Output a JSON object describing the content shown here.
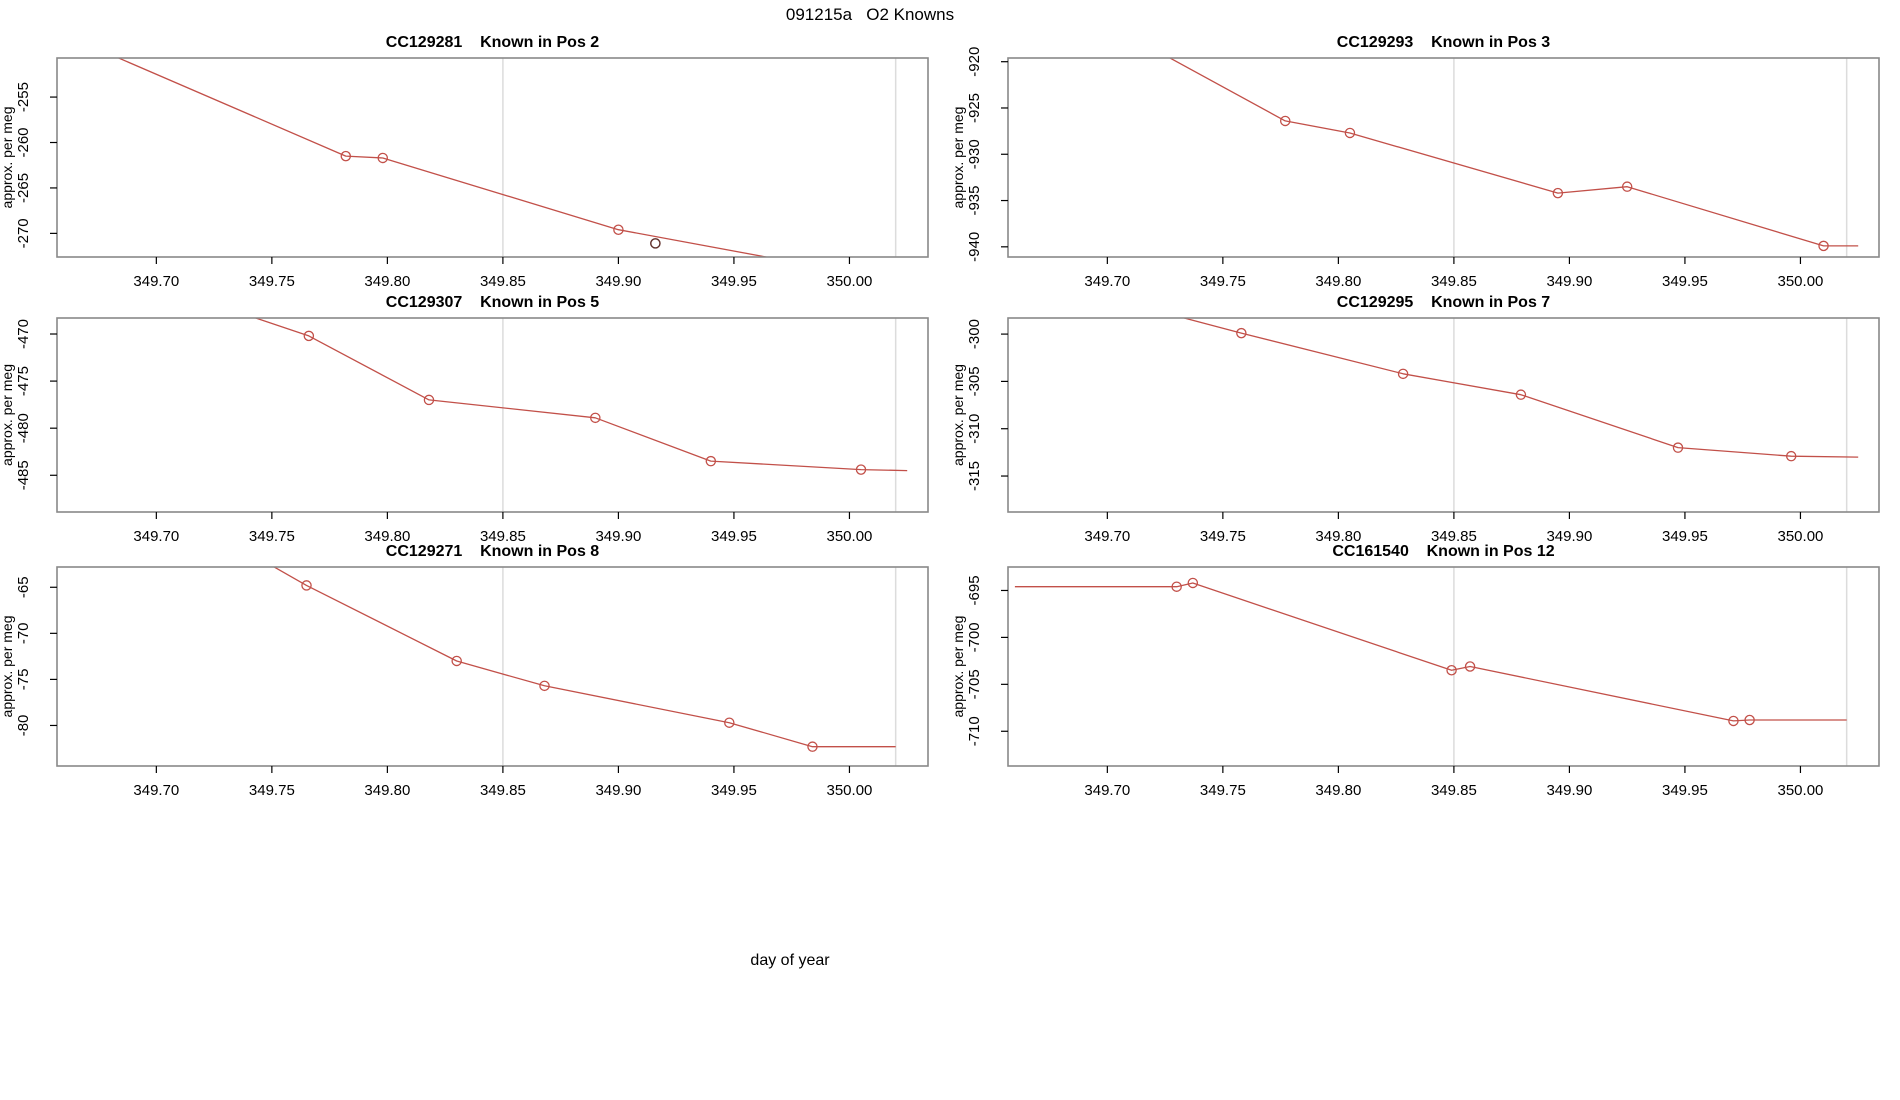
{
  "figure": {
    "title": "091215a   O2 Knowns",
    "xlabel": "day of year",
    "ylabel": "approx. per meg",
    "line_color": "#c25049",
    "marker_color": "#c25049",
    "detached_point_color": "#5f2f2a",
    "grid_color": "#dcdcdc",
    "frame_color": "#898989",
    "text_color": "#000000",
    "background": "#ffffff"
  },
  "axes": {
    "xlim": [
      349.657,
      350.034
    ],
    "xticks": [
      349.7,
      349.75,
      349.8,
      349.85,
      349.9,
      349.95,
      350.0
    ],
    "grid_x": [
      349.85,
      350.02
    ],
    "grid_on": "vertical-reference-lines-only"
  },
  "chart_data": [
    {
      "type": "line",
      "id": "CC129281",
      "pos_label": "Known in Pos 2",
      "title": "CC129281    Known in Pos 2",
      "ylabel": "approx. per meg",
      "ylim": [
        -272.6,
        -250.7
      ],
      "yticks": [
        -255,
        -260,
        -265,
        -270
      ],
      "line": [
        [
          349.64,
          -245.9
        ],
        [
          349.782,
          -261.5
        ],
        [
          349.798,
          -261.7
        ],
        [
          349.9,
          -269.6
        ],
        [
          350.0,
          -274.3
        ]
      ],
      "markers": [
        [
          349.782,
          -261.5
        ],
        [
          349.798,
          -261.7
        ],
        [
          349.9,
          -269.6
        ]
      ],
      "detached_points": [
        [
          349.916,
          -271.1
        ]
      ]
    },
    {
      "type": "line",
      "id": "CC129293",
      "pos_label": "Known in Pos 3",
      "title": "CC129293    Known in Pos 3",
      "ylabel": "approx. per meg",
      "ylim": [
        -941.1,
        -919.6
      ],
      "yticks": [
        -920,
        -925,
        -930,
        -935,
        -940
      ],
      "line": [
        [
          349.7,
          -915.9
        ],
        [
          349.777,
          -926.4
        ],
        [
          349.805,
          -927.7
        ],
        [
          349.895,
          -934.2
        ],
        [
          349.925,
          -933.5
        ],
        [
          350.01,
          -939.9
        ],
        [
          350.025,
          -939.9
        ]
      ],
      "markers": [
        [
          349.777,
          -926.4
        ],
        [
          349.805,
          -927.7
        ],
        [
          349.895,
          -934.2
        ],
        [
          349.925,
          -933.5
        ],
        [
          350.01,
          -939.9
        ]
      ],
      "detached_points": []
    },
    {
      "type": "line",
      "id": "CC129307",
      "pos_label": "Known in Pos 5",
      "title": "CC129307    Known in Pos 5",
      "ylabel": "approx. per meg",
      "ylim": [
        -488.9,
        -468.3
      ],
      "yticks": [
        -470,
        -475,
        -480,
        -485
      ],
      "line": [
        [
          349.72,
          -466.4
        ],
        [
          349.766,
          -470.2
        ],
        [
          349.818,
          -477.0
        ],
        [
          349.89,
          -478.9
        ],
        [
          349.94,
          -483.5
        ],
        [
          350.005,
          -484.4
        ],
        [
          350.025,
          -484.5
        ]
      ],
      "markers": [
        [
          349.766,
          -470.2
        ],
        [
          349.818,
          -477.0
        ],
        [
          349.89,
          -478.9
        ],
        [
          349.94,
          -483.5
        ],
        [
          350.005,
          -484.4
        ]
      ],
      "detached_points": []
    },
    {
      "type": "line",
      "id": "CC129295",
      "pos_label": "Known in Pos 7",
      "title": "CC129295    Known in Pos 7",
      "ylabel": "approx. per meg",
      "ylim": [
        -318.8,
        -298.3
      ],
      "yticks": [
        -300,
        -305,
        -310,
        -315
      ],
      "line": [
        [
          349.71,
          -296.8
        ],
        [
          349.758,
          -299.9
        ],
        [
          349.828,
          -304.2
        ],
        [
          349.879,
          -306.4
        ],
        [
          349.947,
          -312.0
        ],
        [
          349.996,
          -312.9
        ],
        [
          350.025,
          -313.0
        ]
      ],
      "markers": [
        [
          349.758,
          -299.9
        ],
        [
          349.828,
          -304.2
        ],
        [
          349.879,
          -306.4
        ],
        [
          349.947,
          -312.0
        ],
        [
          349.996,
          -312.9
        ]
      ],
      "detached_points": []
    },
    {
      "type": "line",
      "id": "CC129271",
      "pos_label": "Known in Pos 8",
      "title": "CC129271    Known in Pos 8",
      "ylabel": "approx. per meg",
      "ylim": [
        -84.4,
        -62.8
      ],
      "yticks": [
        -65,
        -70,
        -75,
        -80
      ],
      "line": [
        [
          349.73,
          -59.8
        ],
        [
          349.765,
          -64.8
        ],
        [
          349.83,
          -73.0
        ],
        [
          349.868,
          -75.7
        ],
        [
          349.948,
          -79.7
        ],
        [
          349.984,
          -82.3
        ],
        [
          350.02,
          -82.3
        ]
      ],
      "markers": [
        [
          349.765,
          -64.8
        ],
        [
          349.83,
          -73.0
        ],
        [
          349.868,
          -75.7
        ],
        [
          349.948,
          -79.7
        ],
        [
          349.984,
          -82.3
        ]
      ],
      "detached_points": []
    },
    {
      "type": "line",
      "id": "CC161540",
      "pos_label": "Known in Pos 12",
      "title": "CC161540    Known in Pos 12",
      "ylabel": "approx. per meg",
      "ylim": [
        -713.7,
        -692.5
      ],
      "yticks": [
        -695,
        -700,
        -705,
        -710
      ],
      "line": [
        [
          349.66,
          -694.6
        ],
        [
          349.73,
          -694.6
        ],
        [
          349.737,
          -694.2
        ],
        [
          349.849,
          -703.5
        ],
        [
          349.857,
          -703.1
        ],
        [
          349.971,
          -708.9
        ],
        [
          349.978,
          -708.8
        ],
        [
          350.02,
          -708.8
        ]
      ],
      "markers": [
        [
          349.73,
          -694.6
        ],
        [
          349.737,
          -694.2
        ],
        [
          349.849,
          -703.5
        ],
        [
          349.857,
          -703.1
        ],
        [
          349.971,
          -708.9
        ],
        [
          349.978,
          -708.8
        ]
      ],
      "detached_points": []
    }
  ]
}
